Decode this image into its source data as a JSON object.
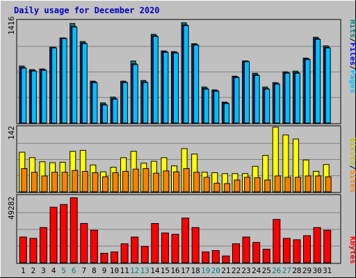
{
  "title": "Daily usage for December 2020",
  "colors": {
    "background": "#c0c0c0",
    "title": "#0000c0",
    "hits": "#008080",
    "files": "#0000ff",
    "pages": "#00c0ff",
    "visits": "#ffff00",
    "sites": "#ff8000",
    "kbytes": "#ff0000",
    "weekend_label": "#008080"
  },
  "legend": {
    "top": [
      {
        "text": "Hits",
        "color": "#008080"
      },
      {
        "text": "/",
        "color": "#000000"
      },
      {
        "text": "Files",
        "color": "#0000ff"
      },
      {
        "text": "/",
        "color": "#000000"
      },
      {
        "text": "Pages",
        "color": "#00c0ff"
      }
    ],
    "middle": [
      {
        "text": "Visits",
        "color": "#c0c000"
      },
      {
        "text": "/",
        "color": "#000000"
      },
      {
        "text": "Sites",
        "color": "#ff8000"
      }
    ],
    "bottom": [
      {
        "text": "KBytes",
        "color": "#ff0000"
      }
    ]
  },
  "chart_data": [
    {
      "type": "bar",
      "panel": "hits-files-pages",
      "ymax_label": "1416",
      "ylim": [
        0,
        1416
      ],
      "x": [
        "1",
        "2",
        "3",
        "4",
        "5",
        "6",
        "7",
        "8",
        "9",
        "10",
        "11",
        "12",
        "13",
        "14",
        "15",
        "16",
        "17",
        "18",
        "19",
        "20",
        "21",
        "22",
        "23",
        "24",
        "25",
        "26",
        "27",
        "28",
        "29",
        "30",
        "31"
      ],
      "series": [
        {
          "name": "Hits",
          "values": [
            790,
            740,
            750,
            1050,
            1180,
            1380,
            1130,
            580,
            280,
            360,
            580,
            860,
            590,
            1230,
            1000,
            990,
            1390,
            1100,
            500,
            460,
            290,
            650,
            860,
            690,
            500,
            560,
            710,
            720,
            900,
            1190,
            1070
          ]
        },
        {
          "name": "Files",
          "values": [
            770,
            730,
            740,
            1050,
            1180,
            1340,
            1110,
            570,
            260,
            340,
            570,
            820,
            570,
            1210,
            990,
            980,
            1360,
            1090,
            480,
            450,
            280,
            640,
            860,
            670,
            480,
            550,
            700,
            700,
            890,
            1170,
            1050
          ]
        },
        {
          "name": "Pages",
          "values": [
            760,
            720,
            730,
            1040,
            1170,
            1330,
            1100,
            560,
            250,
            330,
            560,
            810,
            560,
            1200,
            980,
            970,
            1350,
            1080,
            470,
            440,
            270,
            630,
            850,
            660,
            470,
            540,
            690,
            690,
            880,
            1160,
            1040
          ]
        }
      ]
    },
    {
      "type": "bar",
      "panel": "visits-sites",
      "ymax_label": "142",
      "ylim": [
        0,
        142
      ],
      "x": [
        "1",
        "2",
        "3",
        "4",
        "5",
        "6",
        "7",
        "8",
        "9",
        "10",
        "11",
        "12",
        "13",
        "14",
        "15",
        "16",
        "17",
        "18",
        "19",
        "20",
        "21",
        "22",
        "23",
        "24",
        "25",
        "26",
        "27",
        "28",
        "29",
        "30",
        "31"
      ],
      "series": [
        {
          "name": "Visits",
          "values": [
            87,
            75,
            66,
            64,
            65,
            89,
            91,
            59,
            44,
            54,
            75,
            89,
            63,
            67,
            75,
            57,
            95,
            83,
            43,
            42,
            40,
            40,
            40,
            56,
            80,
            142,
            125,
            116,
            70,
            45,
            60
          ]
        },
        {
          "name": "Sites",
          "values": [
            51,
            43,
            35,
            43,
            43,
            47,
            45,
            42,
            33,
            42,
            45,
            50,
            51,
            41,
            46,
            44,
            51,
            43,
            32,
            19,
            18,
            26,
            32,
            31,
            26,
            35,
            32,
            32,
            35,
            35,
            33
          ]
        }
      ]
    },
    {
      "type": "bar",
      "panel": "kbytes",
      "ymax_label": "49282",
      "ylim": [
        0,
        49282
      ],
      "x": [
        "1",
        "2",
        "3",
        "4",
        "5",
        "6",
        "7",
        "8",
        "9",
        "10",
        "11",
        "12",
        "13",
        "14",
        "15",
        "16",
        "17",
        "18",
        "19",
        "20",
        "21",
        "22",
        "23",
        "24",
        "25",
        "26",
        "27",
        "28",
        "29",
        "30",
        "31"
      ],
      "series": [
        {
          "name": "KBytes",
          "values": [
            19000,
            18000,
            26000,
            41000,
            43000,
            48000,
            29000,
            24000,
            7000,
            8000,
            14000,
            19000,
            12000,
            29000,
            22000,
            21000,
            33000,
            26000,
            8000,
            9000,
            5000,
            14000,
            19000,
            15000,
            10000,
            32000,
            18000,
            17000,
            20000,
            26000,
            24000
          ]
        }
      ]
    }
  ],
  "x_labels": [
    {
      "d": "1",
      "weekend": false
    },
    {
      "d": "2",
      "weekend": false
    },
    {
      "d": "3",
      "weekend": false
    },
    {
      "d": "4",
      "weekend": false
    },
    {
      "d": "5",
      "weekend": true
    },
    {
      "d": "6",
      "weekend": true
    },
    {
      "d": "7",
      "weekend": false
    },
    {
      "d": "8",
      "weekend": false
    },
    {
      "d": "9",
      "weekend": false
    },
    {
      "d": "10",
      "weekend": false
    },
    {
      "d": "11",
      "weekend": false
    },
    {
      "d": "12",
      "weekend": true
    },
    {
      "d": "13",
      "weekend": true
    },
    {
      "d": "14",
      "weekend": false
    },
    {
      "d": "15",
      "weekend": false
    },
    {
      "d": "16",
      "weekend": false
    },
    {
      "d": "17",
      "weekend": false
    },
    {
      "d": "18",
      "weekend": false
    },
    {
      "d": "19",
      "weekend": true
    },
    {
      "d": "20",
      "weekend": true
    },
    {
      "d": "21",
      "weekend": false
    },
    {
      "d": "22",
      "weekend": false
    },
    {
      "d": "23",
      "weekend": false
    },
    {
      "d": "24",
      "weekend": false
    },
    {
      "d": "25",
      "weekend": false
    },
    {
      "d": "26",
      "weekend": true
    },
    {
      "d": "27",
      "weekend": true
    },
    {
      "d": "28",
      "weekend": false
    },
    {
      "d": "29",
      "weekend": false
    },
    {
      "d": "30",
      "weekend": false
    },
    {
      "d": "31",
      "weekend": false
    }
  ]
}
